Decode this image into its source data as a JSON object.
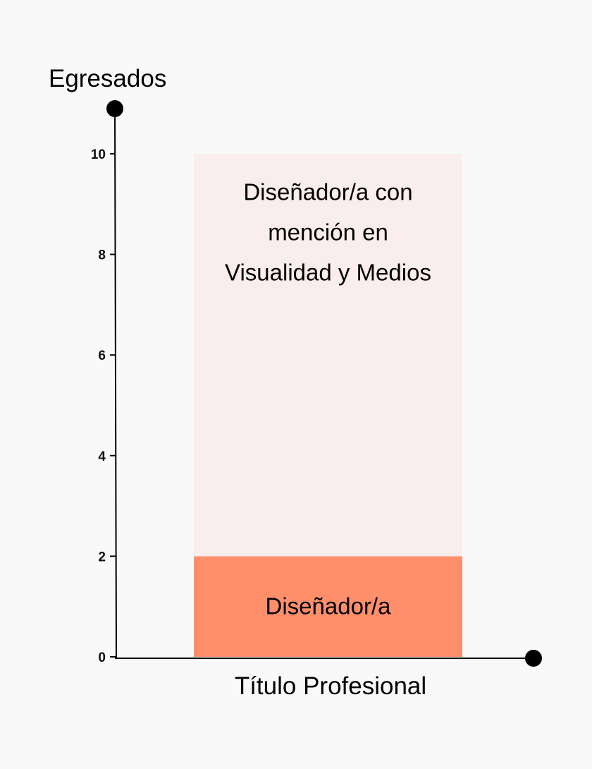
{
  "chart_data": {
    "type": "bar",
    "stacked": true,
    "ylabel": "Egresados",
    "xlabel": "Título Profesional",
    "ylim": [
      0,
      10
    ],
    "yticks": [
      0,
      2,
      4,
      6,
      8,
      10
    ],
    "series": [
      {
        "name": "Diseñador/a",
        "value": 2,
        "color": "#ff8f6b"
      },
      {
        "name": "Diseñador/a con mención en Visualidad y Medios",
        "value": 8,
        "color": "#faeded"
      }
    ],
    "label_lines": [
      [
        "Diseñador/a"
      ],
      [
        "Diseñador/a con",
        "mención en",
        "Visualidad y Medios"
      ]
    ],
    "grid": false,
    "axis_color": "#000000"
  }
}
